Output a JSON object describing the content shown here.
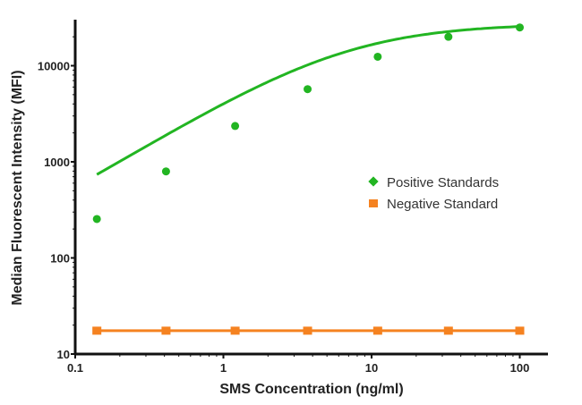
{
  "chart_data": {
    "type": "line",
    "title": "",
    "xlabel": "SMS Concentration (ng/ml)",
    "ylabel": "Median Fluorescent Intensity (MFI)",
    "xscale": "log",
    "yscale": "log",
    "xlim": [
      0.1,
      150
    ],
    "ylim": [
      10,
      35000
    ],
    "x_ticks": [
      "0.1",
      "1",
      "10",
      "100"
    ],
    "y_ticks": [
      "10",
      "100",
      "1000",
      "10000"
    ],
    "grid": false,
    "legend_position": "center-right",
    "x": [
      0.14,
      0.41,
      1.2,
      3.7,
      11,
      33,
      100
    ],
    "series": [
      {
        "name": "Positive Standards",
        "color": "#22b522",
        "marker": "circle",
        "fit": "sigmoid curve",
        "values": [
          254,
          795,
          2360,
          5700,
          12400,
          20000,
          25000
        ]
      },
      {
        "name": "Negative Standard",
        "color": "#f58220",
        "marker": "square",
        "fit": "straight line",
        "values": [
          17.5,
          17.5,
          17.5,
          17.5,
          17.5,
          17.5,
          17.5
        ]
      }
    ]
  },
  "legend": {
    "items": [
      {
        "label": "Positive Standards"
      },
      {
        "label": "Negative Standard"
      }
    ]
  }
}
